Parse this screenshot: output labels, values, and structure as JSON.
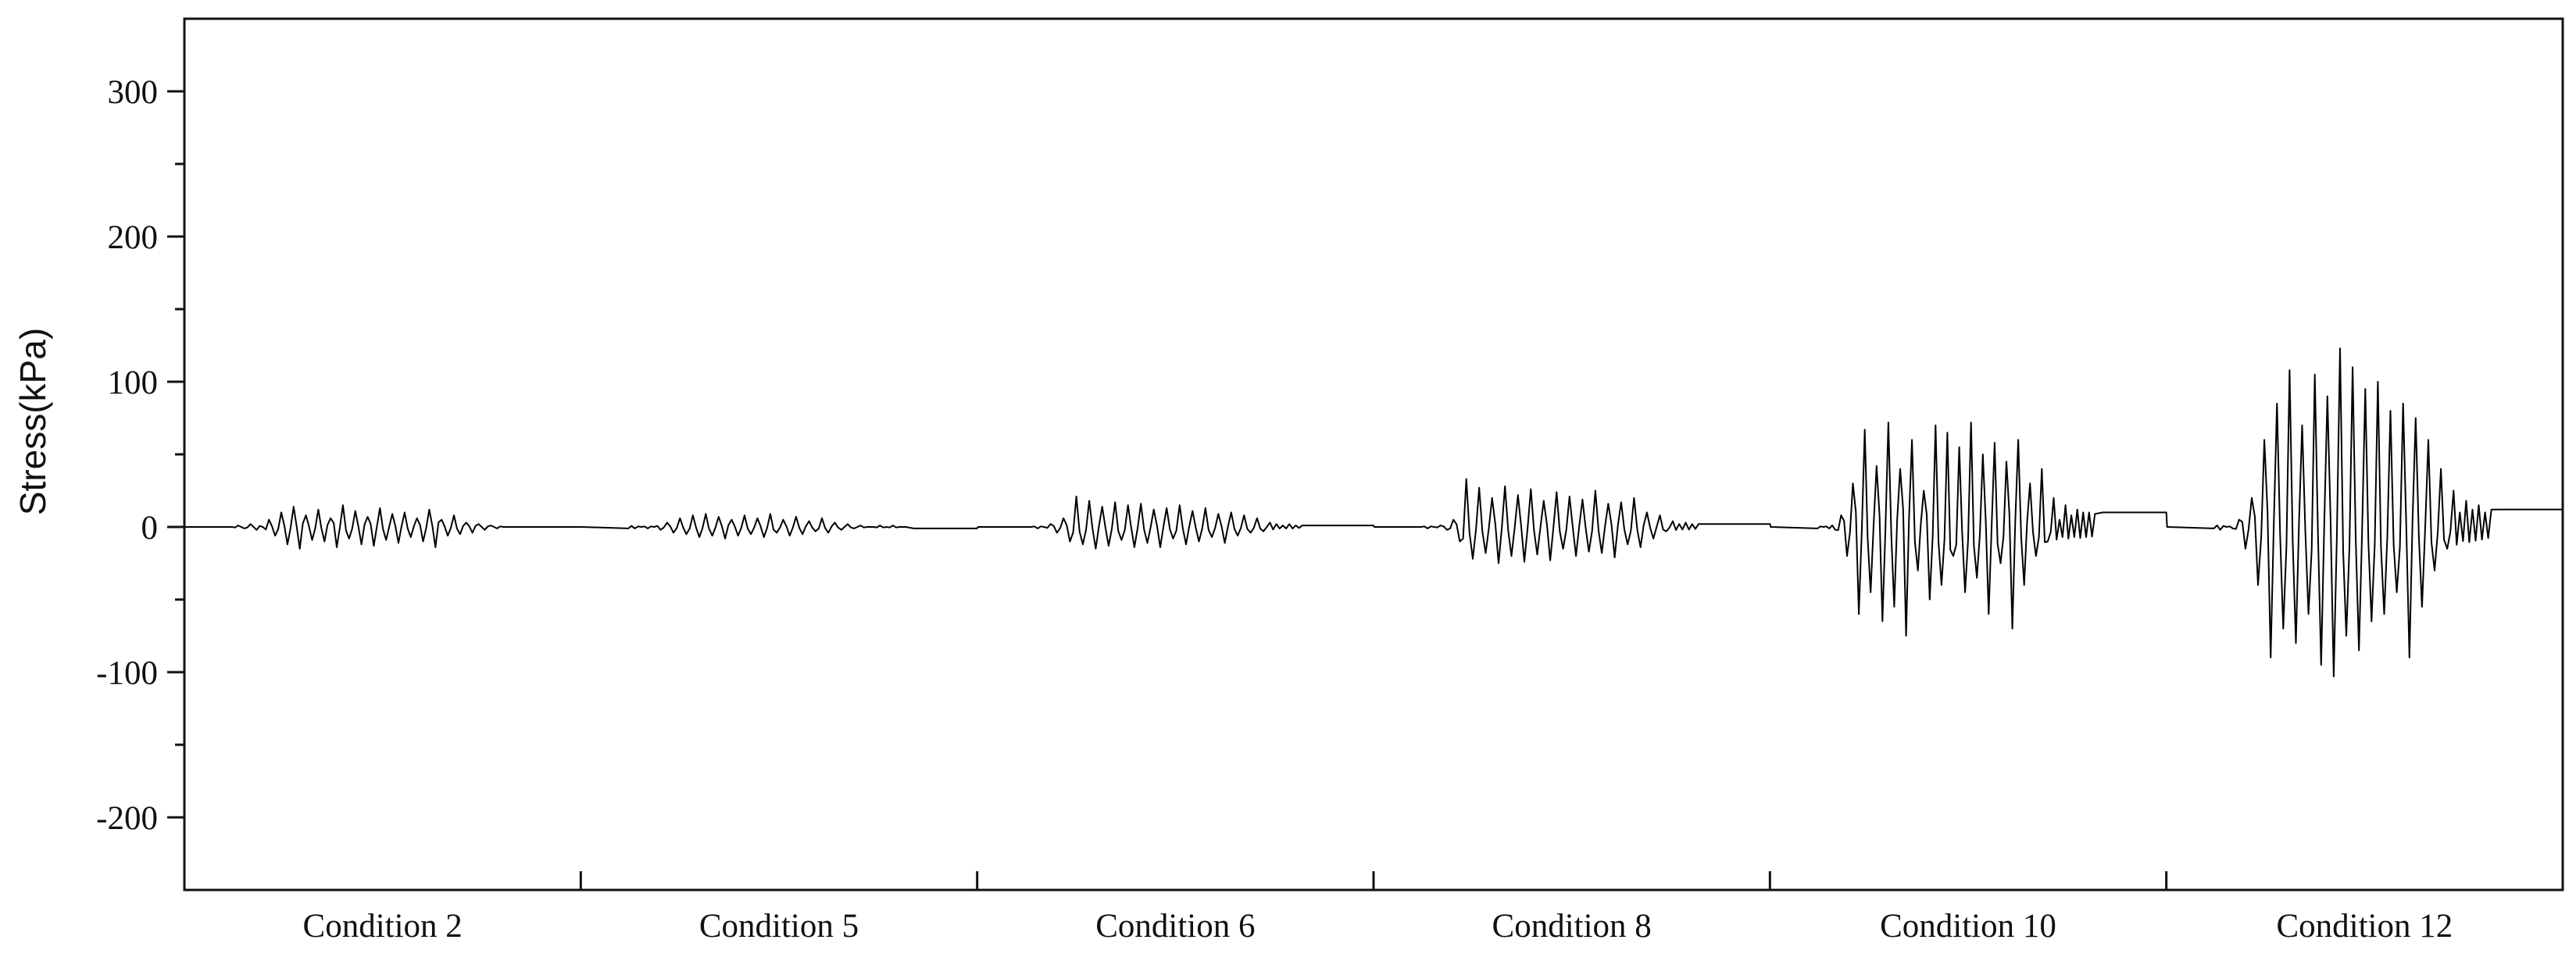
{
  "chart_data": {
    "type": "line",
    "title": "",
    "xlabel": "",
    "ylabel": "Stress(kPa)",
    "ylim": [
      -250,
      350
    ],
    "yticks_major": [
      -200,
      -100,
      0,
      100,
      200,
      300
    ],
    "yticks_minor": [
      -150,
      -50,
      50,
      150,
      250
    ],
    "grid": false,
    "legend": "none",
    "categories": [
      "Condition 2",
      "Condition 5",
      "Condition 6",
      "Condition 8",
      "Condition 10",
      "Condition 12"
    ],
    "line_color": "#000000",
    "series": [
      {
        "segments": [
          {
            "category": "Condition 2",
            "baseline": 0,
            "peak_min": -15,
            "peak_max": 15,
            "values": [
              0,
              1,
              -1,
              2,
              -2,
              0,
              5,
              -6,
              10,
              -12,
              14,
              -15,
              8,
              -9,
              12,
              -10,
              6,
              -14,
              15,
              -8,
              11,
              -12,
              7,
              -13,
              13,
              -9,
              9,
              -11,
              10,
              -7,
              6,
              -10,
              12,
              -14,
              5,
              -6,
              8,
              -5,
              3,
              -4,
              2,
              -2,
              1,
              -1,
              0,
              0
            ]
          },
          {
            "category": "Condition 5",
            "baseline": -1,
            "peak_min": -8,
            "peak_max": 9,
            "values": [
              -1,
              -1,
              0,
              -1,
              0,
              -2,
              3,
              -4,
              6,
              -5,
              8,
              -7,
              9,
              -6,
              7,
              -8,
              5,
              -6,
              8,
              -5,
              6,
              -7,
              9,
              -4,
              5,
              -6,
              7,
              -5,
              4,
              -3,
              6,
              -4,
              3,
              -2,
              2,
              -1,
              1,
              0,
              0,
              1,
              0,
              1,
              0,
              0
            ]
          },
          {
            "category": "Condition 6",
            "baseline": 1,
            "peak_min": -15,
            "peak_max": 21,
            "values": [
              0,
              0,
              -1,
              0,
              2,
              -4,
              6,
              -10,
              21,
              -12,
              18,
              -15,
              14,
              -13,
              17,
              -9,
              15,
              -14,
              16,
              -11,
              12,
              -14,
              13,
              -8,
              15,
              -12,
              11,
              -10,
              13,
              -7,
              9,
              -11,
              10,
              -6,
              8,
              -4,
              6,
              -3,
              3,
              2,
              1,
              2,
              1,
              1
            ]
          },
          {
            "category": "Condition 8",
            "baseline": 2,
            "peak_min": -25,
            "peak_max": 33,
            "values": [
              0,
              -1,
              0,
              1,
              -2,
              5,
              -10,
              33,
              -22,
              27,
              -18,
              20,
              -25,
              28,
              -20,
              22,
              -24,
              26,
              -19,
              18,
              -23,
              24,
              -15,
              21,
              -20,
              19,
              -17,
              25,
              -18,
              16,
              -21,
              17,
              -12,
              20,
              -14,
              10,
              -8,
              8,
              -3,
              4,
              2,
              3,
              2,
              2
            ]
          },
          {
            "category": "Condition 10",
            "baseline": 10,
            "peak_min": -75,
            "peak_max": 75,
            "values": [
              -1,
              0,
              -1,
              -2,
              8,
              -20,
              30,
              -60,
              67,
              -45,
              42,
              -65,
              72,
              -55,
              40,
              -75,
              60,
              -30,
              25,
              -50,
              70,
              -40,
              65,
              -20,
              55,
              -45,
              72,
              -35,
              50,
              -60,
              58,
              -25,
              45,
              -70,
              60,
              -40,
              30,
              -20,
              40,
              -10,
              20,
              5,
              15,
              8,
              12,
              10,
              10,
              9
            ]
          },
          {
            "category": "Condition 12",
            "baseline": 12,
            "peak_min": -103,
            "peak_max": 123,
            "values": [
              -1,
              -2,
              0,
              -1,
              5,
              -15,
              20,
              -40,
              60,
              -90,
              85,
              -70,
              108,
              -80,
              70,
              -60,
              105,
              -95,
              90,
              -103,
              123,
              -75,
              110,
              -85,
              95,
              -65,
              100,
              -60,
              80,
              -45,
              85,
              -90,
              75,
              -55,
              60,
              -30,
              40,
              -15,
              25,
              10,
              18,
              12,
              15,
              10,
              12
            ]
          }
        ]
      }
    ]
  }
}
